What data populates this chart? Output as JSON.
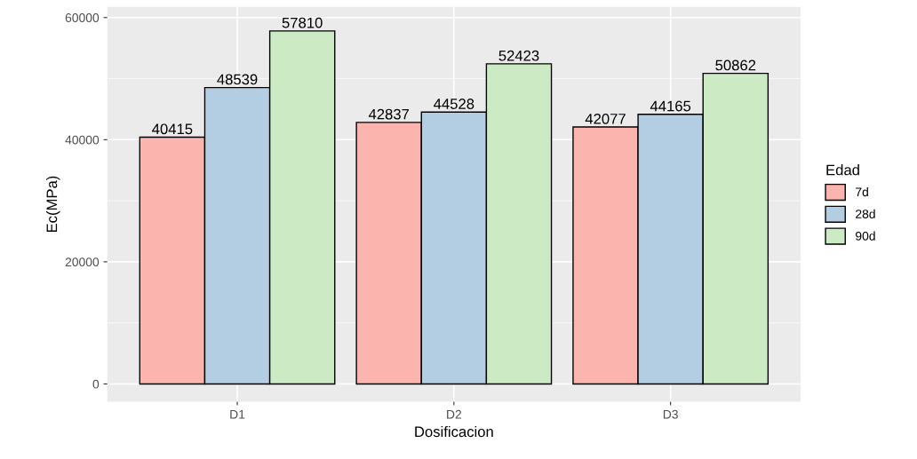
{
  "chart_data": {
    "type": "bar",
    "xlabel": "Dosificacion",
    "ylabel": "Ec(MPa)",
    "legend_title": "Edad",
    "categories": [
      "D1",
      "D2",
      "D3"
    ],
    "series": [
      {
        "name": "7d",
        "color": "#fbb4ae",
        "values": [
          40415,
          42837,
          42077
        ]
      },
      {
        "name": "28d",
        "color": "#b3cde3",
        "values": [
          48539,
          44528,
          44165
        ]
      },
      {
        "name": "90d",
        "color": "#ccebc5",
        "values": [
          57810,
          52423,
          50862
        ]
      }
    ],
    "ylim": [
      -2900,
      61750
    ],
    "yticks": [
      0,
      20000,
      40000,
      60000
    ],
    "grid": true,
    "legend": "right",
    "data_labels": true
  }
}
